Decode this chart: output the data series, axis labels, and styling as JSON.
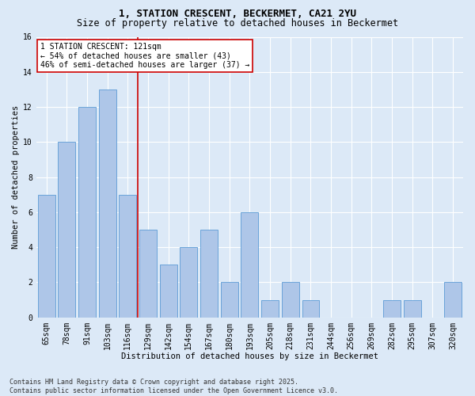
{
  "title_line1": "1, STATION CRESCENT, BECKERMET, CA21 2YU",
  "title_line2": "Size of property relative to detached houses in Beckermet",
  "xlabel": "Distribution of detached houses by size in Beckermet",
  "ylabel": "Number of detached properties",
  "categories": [
    "65sqm",
    "78sqm",
    "91sqm",
    "103sqm",
    "116sqm",
    "129sqm",
    "142sqm",
    "154sqm",
    "167sqm",
    "180sqm",
    "193sqm",
    "205sqm",
    "218sqm",
    "231sqm",
    "244sqm",
    "256sqm",
    "269sqm",
    "282sqm",
    "295sqm",
    "307sqm",
    "320sqm"
  ],
  "values": [
    7,
    10,
    12,
    13,
    7,
    5,
    3,
    4,
    5,
    2,
    6,
    1,
    2,
    1,
    0,
    0,
    0,
    1,
    1,
    0,
    2
  ],
  "bar_color": "#aec6e8",
  "bar_edge_color": "#5b9bd5",
  "ref_line_x": 4.5,
  "ref_line_color": "#cc0000",
  "annotation_text": "1 STATION CRESCENT: 121sqm\n← 54% of detached houses are smaller (43)\n46% of semi-detached houses are larger (37) →",
  "annotation_box_color": "#ffffff",
  "annotation_box_edge_color": "#cc0000",
  "ylim": [
    0,
    16
  ],
  "yticks": [
    0,
    2,
    4,
    6,
    8,
    10,
    12,
    14,
    16
  ],
  "footer_line1": "Contains HM Land Registry data © Crown copyright and database right 2025.",
  "footer_line2": "Contains public sector information licensed under the Open Government Licence v3.0.",
  "background_color": "#dce9f7",
  "grid_color": "#ffffff",
  "title_fontsize": 9,
  "subtitle_fontsize": 8.5,
  "axis_label_fontsize": 7.5,
  "tick_fontsize": 7,
  "annotation_fontsize": 7,
  "footer_fontsize": 6
}
